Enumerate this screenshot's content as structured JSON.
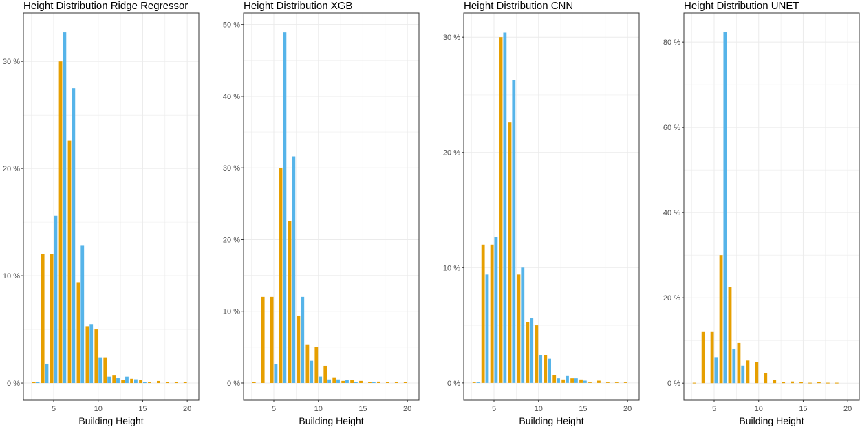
{
  "colors": {
    "observed": "#E69F00",
    "predicted": "#56B4E9"
  },
  "chart_data": [
    {
      "type": "bar",
      "title": "Height Distribution Ridge Regressor",
      "xlabel": "Building Height",
      "ylabel": "",
      "xlim": [
        1.6,
        21.3
      ],
      "ylim": [
        -1.6,
        34.5
      ],
      "xticks": [
        5,
        10,
        15,
        20
      ],
      "yticks": [
        0,
        10,
        20,
        30
      ],
      "ytick_labels": [
        "0 %",
        "10 %",
        "20 %",
        "30 %"
      ],
      "grid": true,
      "x": [
        3,
        4,
        5,
        6,
        7,
        8,
        9,
        10,
        11,
        12,
        13,
        14,
        15,
        16,
        17,
        18,
        19,
        20
      ],
      "series": [
        {
          "color": "#E69F00",
          "values": [
            0.1,
            12,
            12,
            30,
            22.6,
            9.4,
            5.3,
            5.0,
            2.4,
            0.7,
            0.3,
            0.4,
            0.3,
            0.1,
            0.2,
            0.1,
            0.1,
            0.1
          ]
        },
        {
          "color": "#56B4E9",
          "values": [
            0.1,
            1.8,
            15.6,
            32.7,
            27.5,
            12.8,
            5.5,
            2.4,
            0.6,
            0.45,
            0.6,
            0.35,
            0.1,
            0,
            0,
            0,
            0,
            0
          ]
        }
      ]
    },
    {
      "type": "bar",
      "title": "Height Distribution XGB",
      "xlabel": "Building Height",
      "ylabel": "",
      "xlim": [
        1.6,
        21.3
      ],
      "ylim": [
        -2.4,
        51.6
      ],
      "xticks": [
        5,
        10,
        15,
        20
      ],
      "yticks": [
        0,
        10,
        20,
        30,
        40,
        50
      ],
      "ytick_labels": [
        "0 %",
        "10 %",
        "20 %",
        "30 %",
        "40 %",
        "50 %"
      ],
      "grid": true,
      "x": [
        3,
        4,
        5,
        6,
        7,
        8,
        9,
        10,
        11,
        12,
        13,
        14,
        15,
        16,
        17,
        18,
        19,
        20
      ],
      "series": [
        {
          "color": "#E69F00",
          "values": [
            0.1,
            12,
            12,
            30,
            22.6,
            9.4,
            5.3,
            5.0,
            2.4,
            0.7,
            0.3,
            0.4,
            0.3,
            0.1,
            0.2,
            0.1,
            0.1,
            0.1
          ]
        },
        {
          "color": "#56B4E9",
          "values": [
            0,
            0,
            2.6,
            48.9,
            31.6,
            12.0,
            3.1,
            0.9,
            0.5,
            0.5,
            0.4,
            0.1,
            0,
            0.1,
            0,
            0,
            0,
            0
          ]
        }
      ]
    },
    {
      "type": "bar",
      "title": "Height Distribution CNN",
      "xlabel": "Building Height",
      "ylabel": "",
      "xlim": [
        1.6,
        21.3
      ],
      "ylim": [
        -1.5,
        32.1
      ],
      "xticks": [
        5,
        10,
        15,
        20
      ],
      "yticks": [
        0,
        10,
        20,
        30
      ],
      "ytick_labels": [
        "0 %",
        "10 %",
        "20 %",
        "30 %"
      ],
      "grid": true,
      "x": [
        3,
        4,
        5,
        6,
        7,
        8,
        9,
        10,
        11,
        12,
        13,
        14,
        15,
        16,
        17,
        18,
        19,
        20
      ],
      "series": [
        {
          "color": "#E69F00",
          "values": [
            0.1,
            12,
            12,
            30,
            22.6,
            9.4,
            5.3,
            5.0,
            2.4,
            0.7,
            0.3,
            0.4,
            0.3,
            0.1,
            0.2,
            0.1,
            0.1,
            0.1
          ]
        },
        {
          "color": "#56B4E9",
          "values": [
            0.1,
            9.4,
            12.7,
            30.4,
            26.3,
            10.0,
            5.6,
            2.4,
            2.1,
            0.4,
            0.6,
            0.4,
            0.2,
            0,
            0,
            0,
            0,
            0
          ]
        }
      ]
    },
    {
      "type": "bar",
      "title": "Height Distribution UNET",
      "xlabel": "Building Height",
      "ylabel": "",
      "xlim": [
        1.6,
        21.3
      ],
      "ylim": [
        -4.0,
        86.8
      ],
      "xticks": [
        5,
        10,
        15,
        20
      ],
      "yticks": [
        0,
        20,
        40,
        60,
        80
      ],
      "ytick_labels": [
        "0 %",
        "20 %",
        "40 %",
        "60 %",
        "80 %"
      ],
      "grid": true,
      "x": [
        3,
        4,
        5,
        6,
        7,
        8,
        9,
        10,
        11,
        12,
        13,
        14,
        15,
        16,
        17,
        18,
        19
      ],
      "series": [
        {
          "color": "#E69F00",
          "values": [
            0.1,
            12,
            12,
            30,
            22.6,
            9.4,
            5.3,
            5.0,
            2.4,
            0.7,
            0.3,
            0.4,
            0.3,
            0.1,
            0.2,
            0.1,
            0.1
          ]
        },
        {
          "color": "#56B4E9",
          "values": [
            0,
            0,
            6.1,
            82.3,
            8.1,
            4.1,
            0,
            0,
            0,
            0,
            0,
            0,
            0,
            0,
            0,
            0,
            0
          ]
        }
      ]
    }
  ]
}
